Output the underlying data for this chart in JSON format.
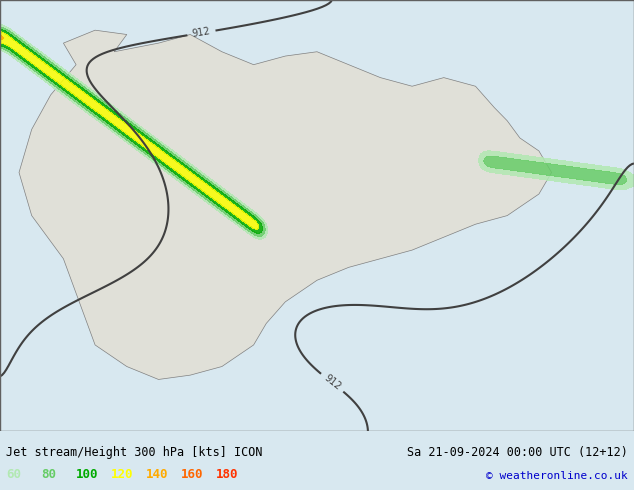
{
  "title_left": "Jet stream/Height 300 hPa [kts] ICON",
  "title_right": "Sa 21-09-2024 00:00 UTC (12+12)",
  "copyright": "© weatheronline.co.uk",
  "legend_values": [
    60,
    80,
    100,
    120,
    140,
    160,
    180
  ],
  "legend_colors": [
    "#b2e6b2",
    "#66cc66",
    "#00aa00",
    "#ffff00",
    "#ffaa00",
    "#ff6600",
    "#ff0000"
  ],
  "bg_color": "#d8e8f0",
  "land_color": "#e8e8e8",
  "bottom_bar_color": "#f0f0f0",
  "contour_color": "#404040",
  "contour_label_color": "#404040",
  "figsize": [
    6.34,
    4.9
  ],
  "dpi": 100
}
